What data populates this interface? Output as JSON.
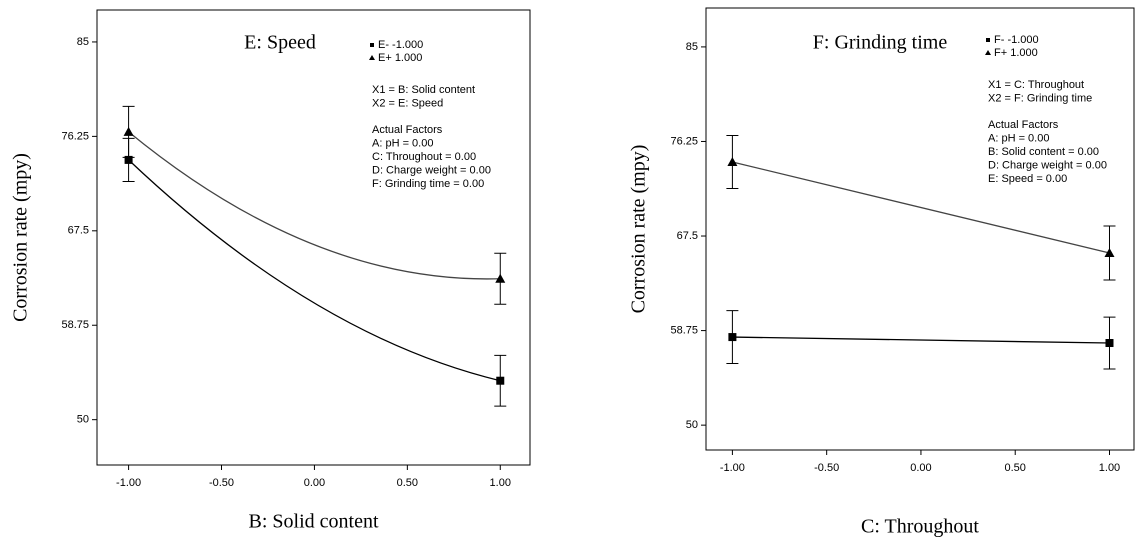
{
  "chart_data": [
    {
      "type": "line",
      "title": "E: Speed",
      "xlabel": "B: Solid content",
      "ylabel": "Corrosion rate (mpy)",
      "x": [
        -1,
        0,
        1
      ],
      "series": [
        {
          "name": "E- -1.000",
          "color": "#000000",
          "marker": "square",
          "values": [
            74.07,
            60.8,
            53.61
          ],
          "errors": [
            2.0,
            null,
            2.35
          ]
        },
        {
          "name": "E+ 1.000",
          "color": "#444444",
          "marker": "triangle",
          "values": [
            76.67,
            66.2,
            63.06
          ],
          "errors": [
            2.36,
            null,
            2.36
          ]
        }
      ],
      "annotations": [
        [
          "X1 = B: Solid content",
          "X2 = E: Speed"
        ],
        [
          "Actual Factors",
          "A: pH = 0.00",
          "C: Throughout = 0.00",
          "D: Charge weight = 0.00",
          "F: Grinding time = 0.00"
        ]
      ],
      "xlim": [
        -1.17,
        1.16
      ],
      "ylim": [
        45.8,
        87.96
      ],
      "xticks": [
        {
          "value": -1,
          "label": "-1.00"
        },
        {
          "value": -0.5,
          "label": "-0.50"
        },
        {
          "value": 0,
          "label": "0.00"
        },
        {
          "value": 0.5,
          "label": "0.50"
        },
        {
          "value": 1,
          "label": "1.00"
        }
      ],
      "yticks": [
        50,
        58.75,
        67.5,
        76.25,
        85
      ],
      "grid": false
    },
    {
      "type": "line",
      "title": "F: Grinding time",
      "xlabel": "C: Throughout",
      "ylabel": "Corrosion rate (mpy)",
      "x": [
        -1,
        1
      ],
      "series": [
        {
          "name": "F- -1.000",
          "color": "#000000",
          "marker": "square",
          "values": [
            58.15,
            57.6
          ],
          "errors": [
            2.45,
            2.4
          ]
        },
        {
          "name": "F+ 1.000",
          "color": "#444444",
          "marker": "triangle",
          "values": [
            74.35,
            65.93
          ],
          "errors": [
            2.45,
            2.5
          ]
        }
      ],
      "annotations": [
        [
          "X1 = C: Throughout",
          "X2 = F: Grinding time"
        ],
        [
          "Actual Factors",
          "A: pH = 0.00",
          "B: Solid content = 0.00",
          "D: Charge weight = 0.00",
          "E: Speed = 0.00"
        ]
      ],
      "xlim": [
        -1.14,
        1.13
      ],
      "ylim": [
        47.7,
        88.6
      ],
      "xticks": [
        {
          "value": -1,
          "label": "-1.00"
        },
        {
          "value": -0.5,
          "label": "-0.50"
        },
        {
          "value": 0,
          "label": "0.00"
        },
        {
          "value": 0.5,
          "label": "0.50"
        },
        {
          "value": 1,
          "label": "1.00"
        }
      ],
      "yticks": [
        50,
        58.75,
        67.5,
        76.25,
        85
      ],
      "grid": false
    }
  ]
}
